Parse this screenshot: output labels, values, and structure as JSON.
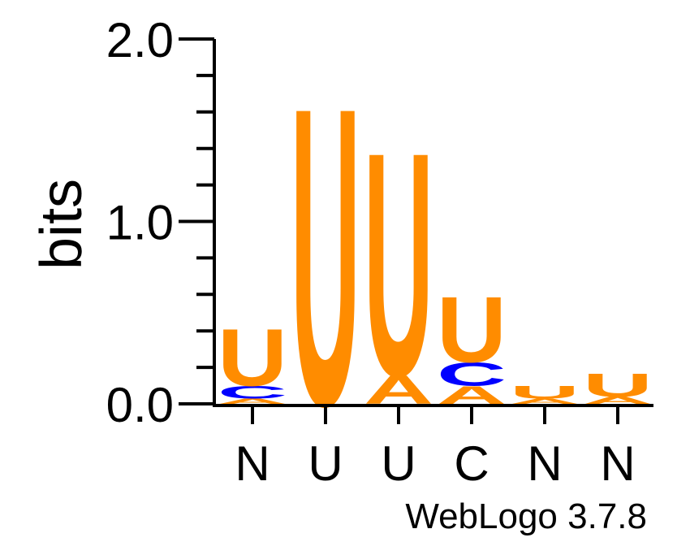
{
  "chart_data": {
    "type": "sequence-logo",
    "ylabel": "bits",
    "ylim": [
      0,
      2.0
    ],
    "y_ticks": [
      {
        "value": 0.0,
        "label": "0.0"
      },
      {
        "value": 1.0,
        "label": "1.0"
      },
      {
        "value": 2.0,
        "label": "2.0"
      }
    ],
    "minor_tick_step": 0.2,
    "colors": {
      "U": "#ff8c00",
      "A": "#ff8c00",
      "C": "#0000ff",
      "G": "#0000ff",
      "axis": "#000000"
    },
    "positions": [
      {
        "label": "N",
        "stack": [
          {
            "letter": "A",
            "height": 0.03
          },
          {
            "letter": "C",
            "height": 0.07
          },
          {
            "letter": "U",
            "height": 0.32
          }
        ]
      },
      {
        "label": "U",
        "stack": [
          {
            "letter": "U",
            "height": 1.68
          }
        ]
      },
      {
        "label": "U",
        "stack": [
          {
            "letter": "A",
            "height": 0.16
          },
          {
            "letter": "U",
            "height": 1.26
          }
        ]
      },
      {
        "label": "C",
        "stack": [
          {
            "letter": "A",
            "height": 0.1
          },
          {
            "letter": "C",
            "height": 0.13
          },
          {
            "letter": "U",
            "height": 0.37
          }
        ]
      },
      {
        "label": "N",
        "stack": [
          {
            "letter": "A",
            "height": 0.03
          },
          {
            "letter": "U",
            "height": 0.07
          }
        ]
      },
      {
        "label": "N",
        "stack": [
          {
            "letter": "A",
            "height": 0.04
          },
          {
            "letter": "U",
            "height": 0.13
          }
        ]
      }
    ]
  },
  "credit": "WebLogo 3.7.8"
}
